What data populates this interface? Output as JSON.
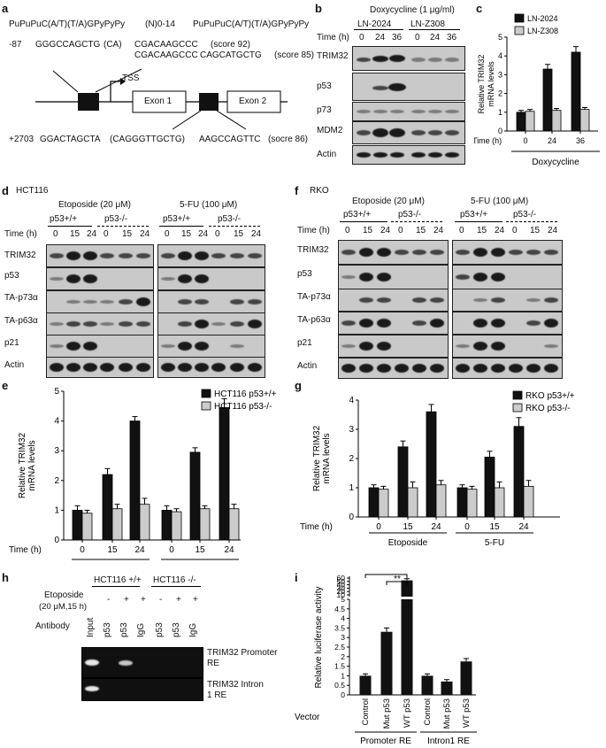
{
  "panel_a": {
    "label": "a",
    "consensus": "PuPuPuC(A/T)(T/A)GPyPyPy",
    "spacer": "(N)0-14",
    "consensus2": "PuPuPuC(A/T)(T/A)GPyPyPy",
    "promoter_pos": "-87",
    "promoter_seq1": "GGGCCAGCTG",
    "promoter_gap": "(CA)",
    "promoter_seq2": "CGACAAGCCC",
    "promoter_score1": "(score 92)",
    "promoter_seq3": "CGACAAGCCC",
    "promoter_seq4": "CAGCATGCTG",
    "promoter_score2": "(score 85)",
    "tss": "TSS",
    "exon1": "Exon 1",
    "exon2": "Exon 2",
    "intron_pos": "+2703",
    "intron_seq1": "GGACTAGCTA",
    "intron_gap": "(CAGGGTTGCTG)",
    "intron_seq2": "AAGCCAGTTC",
    "intron_score": "(socre 86)"
  },
  "panel_b": {
    "label": "b",
    "treatment": "Doxycycline (1 μg/ml)",
    "lines": [
      "LN-2024",
      "LN-Z308"
    ],
    "time_label": "Time (h)",
    "times": [
      "0",
      "24",
      "36",
      "0",
      "24",
      "36"
    ],
    "rows": [
      "TRIM32",
      "p53",
      "p73",
      "MDM2",
      "Actin"
    ]
  },
  "panel_c": {
    "label": "c",
    "chart_data": {
      "type": "bar",
      "ylabel": "Relative TRIM32 mRNA levels",
      "ylim": [
        0,
        5
      ],
      "yticks": [
        "0",
        "1",
        "2",
        "3",
        "4",
        "5"
      ],
      "categories": [
        "0",
        "24",
        "36"
      ],
      "x_label_prefix": "Time (h)",
      "group_label": "Doxycycline",
      "series": [
        {
          "name": "LN-2024",
          "values": [
            1.0,
            3.3,
            4.2
          ],
          "errors": [
            0.1,
            0.25,
            0.3
          ],
          "color": "#111111"
        },
        {
          "name": "LN-Z308",
          "values": [
            1.05,
            1.1,
            1.15
          ],
          "errors": [
            0.1,
            0.1,
            0.1
          ],
          "color": "#cccccc"
        }
      ]
    }
  },
  "panel_d": {
    "label": "d",
    "cell": "HCT116",
    "treatments": [
      "Etoposide (20 μM)",
      "5-FU (100 μM)"
    ],
    "genotypes": [
      "p53+/+",
      "p53-/-",
      "p53+/+",
      "p53-/-"
    ],
    "time_label": "Time (h)",
    "times": [
      "0",
      "15",
      "24",
      "0",
      "15",
      "24",
      "0",
      "15",
      "24",
      "0",
      "15",
      "24"
    ],
    "rows": [
      "TRIM32",
      "p53",
      "TA-p73α",
      "TA-p63α",
      "p21",
      "Actin"
    ]
  },
  "panel_f": {
    "label": "f",
    "cell": "RKO",
    "treatments": [
      "Etoposide (20 μM)",
      "5-FU (100 μM)"
    ],
    "genotypes": [
      "p53+/+",
      "p53-/-",
      "p53+/+",
      "p53-/-"
    ],
    "time_label": "Time (h)",
    "times": [
      "0",
      "15",
      "24",
      "0",
      "15",
      "24",
      "0",
      "15",
      "24",
      "0",
      "15",
      "24"
    ],
    "rows": [
      "TRIM32",
      "p53",
      "TA-p73α",
      "TA-p63α",
      "p21",
      "Actin"
    ]
  },
  "panel_e": {
    "label": "e",
    "chart_data": {
      "type": "bar",
      "ylabel": "Relative TRIM32 mRNA levels",
      "ylim": [
        0,
        5
      ],
      "yticks": [
        "0",
        "1",
        "2",
        "3",
        "4",
        "5"
      ],
      "categories": [
        "0",
        "15",
        "24",
        "0",
        "15",
        "24"
      ],
      "x_label_prefix": "Time (h)",
      "groups": [
        "Etoposide",
        "5-FU"
      ],
      "series": [
        {
          "name": "HCT116 p53+/+",
          "values": [
            1.0,
            2.2,
            4.0,
            1.0,
            2.95,
            4.45
          ],
          "errors": [
            0.15,
            0.2,
            0.15,
            0.15,
            0.15,
            0.3
          ],
          "color": "#111111"
        },
        {
          "name": "HCT116 p53-/-",
          "values": [
            0.9,
            1.05,
            1.2,
            0.95,
            1.05,
            1.05
          ],
          "errors": [
            0.1,
            0.15,
            0.2,
            0.1,
            0.1,
            0.15
          ],
          "color": "#cccccc"
        }
      ]
    }
  },
  "panel_g": {
    "label": "g",
    "chart_data": {
      "type": "bar",
      "ylabel": "Relative TRIM32 mRNA levels",
      "ylim": [
        0,
        4
      ],
      "yticks": [
        "0",
        "1",
        "2",
        "3",
        "4"
      ],
      "categories": [
        "0",
        "15",
        "24",
        "0",
        "15",
        "24"
      ],
      "x_label_prefix": "Time (h)",
      "groups": [
        "Etoposide",
        "5-FU"
      ],
      "series": [
        {
          "name": "RKO p53+/+",
          "values": [
            1.0,
            2.4,
            3.6,
            1.0,
            2.05,
            3.1
          ],
          "errors": [
            0.1,
            0.2,
            0.25,
            0.1,
            0.2,
            0.3
          ],
          "color": "#111111"
        },
        {
          "name": "RKO p53-/-",
          "values": [
            0.95,
            1.0,
            1.1,
            0.95,
            1.0,
            1.05
          ],
          "errors": [
            0.1,
            0.2,
            0.15,
            0.1,
            0.2,
            0.2
          ],
          "color": "#cccccc"
        }
      ]
    }
  },
  "panel_h": {
    "label": "h",
    "groups": [
      "HCT116 +/+",
      "HCT116 -/-"
    ],
    "treatment_label": "Etoposide",
    "treatment_sub": "(20 μM,15 h)",
    "treatment_marks": [
      "-",
      "+",
      "+",
      "-",
      "+",
      "+"
    ],
    "antibody_label": "Antibody",
    "lanes": [
      "Input",
      "p53",
      "p53",
      "IgG",
      "p53",
      "p53",
      "IgG"
    ],
    "rows": [
      "TRIM32 Promoter RE",
      "TRIM32 Intron 1 RE"
    ]
  },
  "panel_i": {
    "label": "i",
    "chart_data": {
      "type": "bar",
      "ylabel": "Relative luciferase activity",
      "yticks_low": [
        "0",
        "0.5",
        "1",
        "1.5",
        "2",
        "2.5",
        "3",
        "3.5",
        "4",
        "4.5",
        "5"
      ],
      "yticks_high": [
        "10",
        "20",
        "30",
        "40",
        "50",
        "60"
      ],
      "categories": [
        "Control",
        "Mut p53",
        "WT p53",
        "Control",
        "Mut p53",
        "WT p53"
      ],
      "groups": [
        "Promoter RE",
        "Intron1 RE"
      ],
      "x_prefix": "Vector",
      "values": [
        1.0,
        3.3,
        53,
        1.0,
        0.7,
        1.75
      ],
      "errors": [
        0.1,
        0.2,
        5,
        0.1,
        0.1,
        0.15
      ],
      "significance": [
        "**",
        "**"
      ],
      "color": "#111111"
    }
  }
}
